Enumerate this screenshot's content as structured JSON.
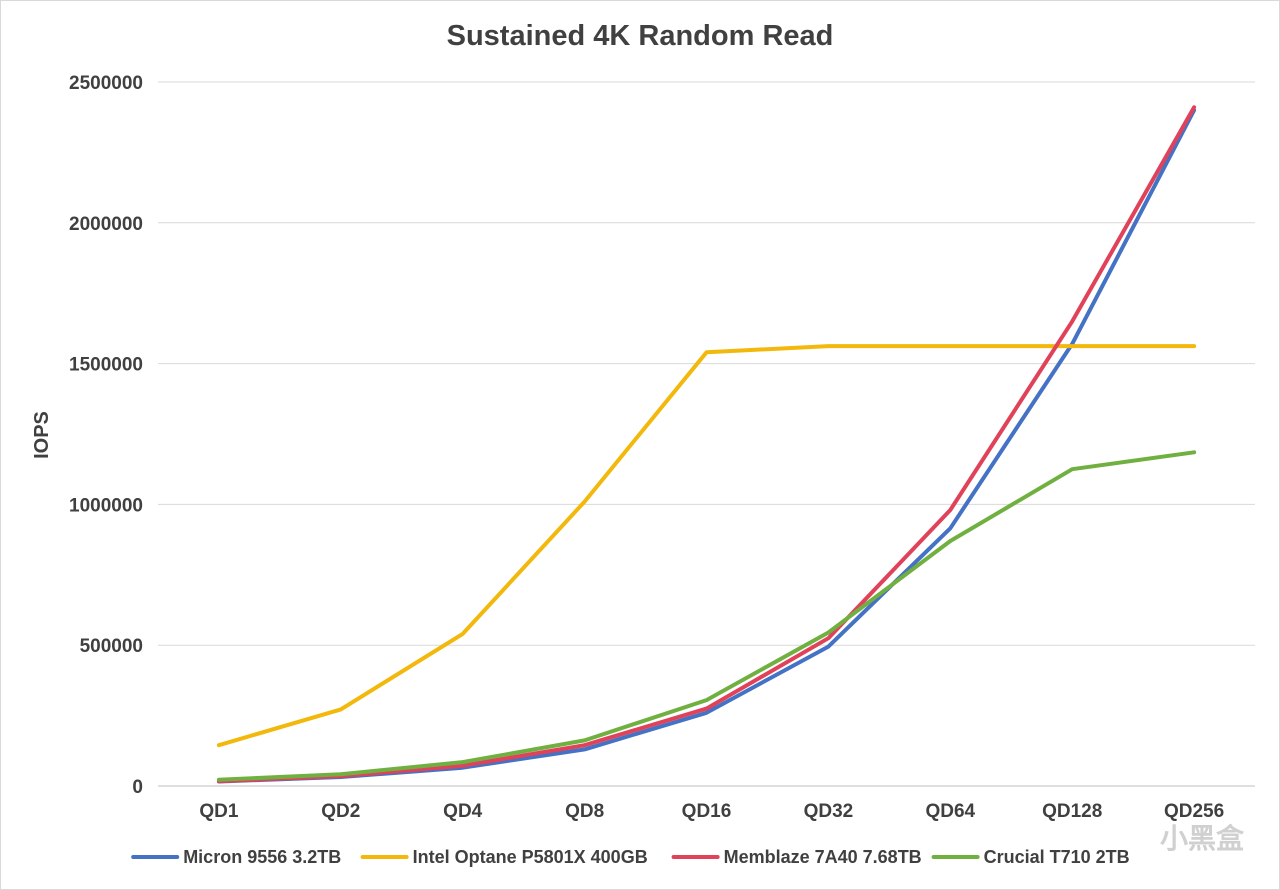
{
  "watermark": "小黑盒",
  "chart_data": {
    "type": "line",
    "title": "Sustained 4K Random Read",
    "ylabel": "IOPS",
    "xlabel": "",
    "categories": [
      "QD1",
      "QD2",
      "QD4",
      "QD8",
      "QD16",
      "QD32",
      "QD64",
      "QD128",
      "QD256"
    ],
    "ylim": [
      0,
      2500000
    ],
    "yticks": [
      0,
      500000,
      1000000,
      1500000,
      2000000,
      2500000
    ],
    "ytick_labels": [
      "0",
      "500000",
      "1000000",
      "1500000",
      "2000000",
      "2500000"
    ],
    "grid": true,
    "legend": "bottom",
    "series": [
      {
        "name": "Micron 9556 3.2TB",
        "color": "#4472c4",
        "values": [
          16000,
          32000,
          65000,
          130000,
          260000,
          495000,
          915000,
          1570000,
          2400000
        ]
      },
      {
        "name": "Intel Optane P5801X 400GB",
        "color": "#f2b80b",
        "values": [
          145000,
          272000,
          540000,
          1010000,
          1540000,
          1562000,
          1562000,
          1562000,
          1562000
        ]
      },
      {
        "name": "Memblaze 7A40 7.68TB",
        "color": "#e0425a",
        "values": [
          17000,
          35000,
          72000,
          145000,
          275000,
          525000,
          980000,
          1650000,
          2410000
        ]
      },
      {
        "name": "Crucial T710 2TB",
        "color": "#70b040",
        "values": [
          22000,
          42000,
          85000,
          162000,
          305000,
          545000,
          870000,
          1125000,
          1185000
        ]
      }
    ]
  }
}
